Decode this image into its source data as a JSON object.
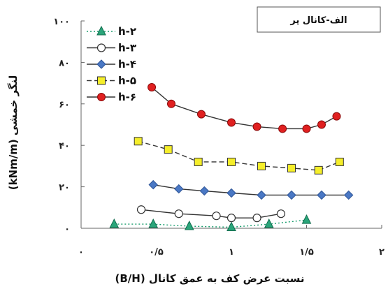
{
  "chart_data": {
    "type": "line",
    "panel_title": "الف-کانال پر",
    "xlabel": "نسبت عرض کف به عمق کانال (B/H)",
    "ylabel": "لنگر خمشی (kNm/m)",
    "xlim": [
      0,
      2
    ],
    "ylim": [
      0,
      100
    ],
    "x_ticks": [
      {
        "value": 0,
        "label": "۰"
      },
      {
        "value": 0.5,
        "label": "۰/۵"
      },
      {
        "value": 1,
        "label": "۱"
      },
      {
        "value": 1.5,
        "label": "۱/۵"
      },
      {
        "value": 2,
        "label": "۲"
      }
    ],
    "y_ticks": [
      {
        "value": 0,
        "label": "۰"
      },
      {
        "value": 20,
        "label": "۲۰"
      },
      {
        "value": 40,
        "label": "۴۰"
      },
      {
        "value": 60,
        "label": "۶۰"
      },
      {
        "value": 80,
        "label": "۸۰"
      },
      {
        "value": 100,
        "label": "۱۰۰"
      }
    ],
    "grid": false,
    "legend_position": "top-left",
    "series": [
      {
        "name": "h-۲",
        "color": "#1a9e6e",
        "marker": "triangle",
        "line_style": "dotted",
        "x": [
          0.22,
          0.48,
          0.72,
          1.0,
          1.25,
          1.5
        ],
        "y": [
          2,
          2,
          1,
          0.5,
          2,
          4
        ]
      },
      {
        "name": "h-۳",
        "color": "#333333",
        "marker": "circle-open",
        "line_style": "solid",
        "x": [
          0.4,
          0.65,
          0.9,
          1.0,
          1.17,
          1.33
        ],
        "y": [
          9,
          7,
          6,
          5,
          5,
          7
        ]
      },
      {
        "name": "h-۴",
        "color": "#333333",
        "marker": "diamond",
        "line_style": "solid",
        "x": [
          0.48,
          0.65,
          0.82,
          1.0,
          1.2,
          1.4,
          1.6,
          1.78
        ],
        "y": [
          21,
          19,
          18,
          17,
          16,
          16,
          16,
          16
        ]
      },
      {
        "name": "h-۵",
        "color": "#333333",
        "marker": "square",
        "line_style": "dashed",
        "x": [
          0.38,
          0.58,
          0.78,
          1.0,
          1.2,
          1.4,
          1.58,
          1.72
        ],
        "y": [
          42,
          38,
          32,
          32,
          30,
          29,
          28,
          32
        ]
      },
      {
        "name": "h-۶",
        "color": "#333333",
        "marker": "circle-red",
        "line_style": "solid",
        "x": [
          0.47,
          0.6,
          0.8,
          1.0,
          1.17,
          1.34,
          1.5,
          1.6,
          1.7
        ],
        "y": [
          68,
          60,
          55,
          51,
          49,
          48,
          48,
          50,
          54
        ]
      }
    ]
  }
}
